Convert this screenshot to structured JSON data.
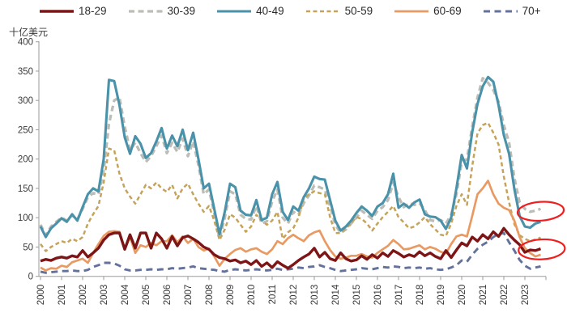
{
  "unit_label": "十亿美元",
  "axis_color": "#9b9b9b",
  "text_color": "#3a3a3a",
  "annotation_color": "#f01e1e",
  "legend": {
    "position": "top"
  },
  "chart_data": {
    "type": "line",
    "frequency": "quarterly",
    "title": "",
    "xlabel": "",
    "ylabel": "十亿美元",
    "categories": [
      "2000",
      "2001",
      "2002",
      "2003",
      "2004",
      "2005",
      "2006",
      "2007",
      "2008",
      "2009",
      "2010",
      "2011",
      "2012",
      "2013",
      "2014",
      "2015",
      "2016",
      "2017",
      "2018",
      "2019",
      "2020",
      "2021",
      "2022",
      "2023"
    ],
    "ylim": [
      0,
      400
    ],
    "y_ticks": [
      0,
      50,
      100,
      150,
      200,
      250,
      300,
      350,
      400
    ],
    "grid": false,
    "legend_position": "top",
    "series": [
      {
        "name": "18-29",
        "color": "#7d1517",
        "dash": "solid",
        "width": 3.4,
        "values": [
          26,
          29,
          27,
          31,
          33,
          31,
          35,
          33,
          44,
          33,
          40,
          48,
          62,
          71,
          74,
          74,
          46,
          71,
          48,
          74,
          74,
          48,
          74,
          64,
          48,
          68,
          52,
          66,
          69,
          64,
          58,
          50,
          46,
          37,
          32,
          30,
          26,
          28,
          23,
          26,
          20,
          27,
          17,
          23,
          15,
          25,
          19,
          14,
          20,
          27,
          33,
          38,
          48,
          33,
          41,
          30,
          27,
          40,
          30,
          26,
          28,
          35,
          29,
          37,
          31,
          40,
          34,
          44,
          39,
          33,
          37,
          34,
          42,
          35,
          40,
          34,
          30,
          44,
          32,
          45,
          57,
          52,
          67,
          60,
          71,
          64,
          76,
          68,
          82,
          71,
          62,
          54,
          41,
          45,
          44,
          47
        ]
      },
      {
        "name": "30-39",
        "color": "#bcbdb6",
        "dash": "7 4.5",
        "width": 3.3,
        "values": [
          88,
          70,
          85,
          93,
          100,
          95,
          104,
          97,
          115,
          135,
          142,
          140,
          180,
          260,
          300,
          305,
          255,
          215,
          228,
          210,
          195,
          205,
          222,
          240,
          210,
          228,
          212,
          235,
          205,
          230,
          190,
          140,
          148,
          108,
          64,
          100,
          145,
          140,
          105,
          98,
          97,
          120,
          90,
          94,
          128,
          148,
          100,
          90,
          110,
          105,
          125,
          138,
          155,
          152,
          148,
          120,
          88,
          74,
          80,
          90,
          100,
          112,
          105,
          98,
          112,
          118,
          130,
          160,
          135,
          118,
          125,
          122,
          125,
          113,
          96,
          94,
          96,
          90,
          105,
          140,
          195,
          200,
          255,
          305,
          338,
          330,
          318,
          298,
          258,
          228,
          168,
          126,
          115,
          110,
          112,
          115
        ]
      },
      {
        "name": "40-49",
        "color": "#4a92a9",
        "dash": "solid",
        "width": 3.1,
        "values": [
          85,
          67,
          82,
          90,
          99,
          93,
          106,
          95,
          118,
          140,
          150,
          145,
          200,
          335,
          333,
          292,
          237,
          209,
          239,
          226,
          202,
          210,
          230,
          253,
          218,
          240,
          222,
          250,
          215,
          245,
          200,
          150,
          158,
          115,
          72,
          110,
          158,
          152,
          112,
          105,
          104,
          130,
          96,
          100,
          140,
          161,
          110,
          96,
          119,
          112,
          135,
          150,
          170,
          166,
          165,
          130,
          95,
          78,
          85,
          95,
          108,
          119,
          112,
          103,
          119,
          125,
          140,
          175,
          117,
          124,
          117,
          126,
          131,
          106,
          102,
          101,
          95,
          81,
          100,
          150,
          207,
          184,
          246,
          294,
          324,
          340,
          332,
          292,
          241,
          209,
          149,
          103,
          85,
          83,
          90,
          93
        ]
      },
      {
        "name": "50-59",
        "color": "#c5a35a",
        "dash": "5 3.5",
        "width": 2.5,
        "values": [
          55,
          43,
          50,
          55,
          60,
          57,
          64,
          60,
          67,
          90,
          106,
          120,
          160,
          218,
          215,
          175,
          150,
          136,
          124,
          140,
          156,
          150,
          160,
          150,
          144,
          156,
          133,
          150,
          158,
          140,
          124,
          110,
          120,
          95,
          62,
          80,
          106,
          100,
          88,
          76,
          85,
          105,
          95,
          88,
          95,
          110,
          64,
          75,
          82,
          100,
          133,
          140,
          145,
          142,
          140,
          101,
          74,
          74,
          82,
          90,
          101,
          98,
          90,
          78,
          90,
          101,
          110,
          120,
          101,
          92,
          82,
          85,
          92,
          101,
          89,
          80,
          71,
          69,
          90,
          120,
          140,
          122,
          188,
          244,
          258,
          262,
          245,
          225,
          170,
          126,
          89,
          70,
          64,
          60,
          63,
          66
        ]
      },
      {
        "name": "60-69",
        "color": "#e99a63",
        "dash": "solid",
        "width": 2.7,
        "values": [
          15,
          10,
          14,
          13,
          18,
          16,
          24,
          27,
          30,
          23,
          40,
          55,
          69,
          76,
          77,
          76,
          46,
          67,
          40,
          53,
          50,
          57,
          53,
          60,
          60,
          70,
          58,
          68,
          57,
          64,
          50,
          44,
          47,
          34,
          18,
          30,
          38,
          45,
          48,
          42,
          46,
          48,
          42,
          38,
          46,
          60,
          55,
          65,
          71,
          65,
          60,
          70,
          75,
          78,
          60,
          45,
          34,
          30,
          32,
          35,
          35,
          38,
          34,
          32,
          40,
          46,
          52,
          62,
          55,
          46,
          47,
          50,
          53,
          46,
          50,
          47,
          42,
          39,
          55,
          68,
          71,
          68,
          103,
          140,
          150,
          163,
          140,
          124,
          117,
          113,
          95,
          67,
          48,
          40,
          34,
          37
        ]
      },
      {
        "name": "70+",
        "color": "#64719b",
        "dash": "8 5.5",
        "width": 2.9,
        "values": [
          8,
          6,
          7,
          8,
          9,
          9,
          10,
          9,
          9,
          11,
          16,
          19,
          23,
          23,
          22,
          18,
          12,
          10,
          10,
          11,
          11,
          12,
          11,
          12,
          12,
          14,
          13,
          14,
          15,
          17,
          14,
          13,
          12,
          11,
          9,
          8,
          11,
          12,
          11,
          10,
          11,
          12,
          11,
          10,
          11,
          13,
          11,
          12,
          13,
          15,
          14,
          16,
          17,
          19,
          16,
          14,
          11,
          9,
          10,
          11,
          12,
          14,
          13,
          12,
          14,
          16,
          15,
          17,
          16,
          14,
          15,
          14,
          15,
          13,
          14,
          12,
          11,
          12,
          15,
          19,
          27,
          25,
          37,
          47,
          54,
          59,
          67,
          72,
          74,
          58,
          44,
          28,
          18,
          13,
          15,
          17
        ]
      }
    ],
    "annotations": [
      {
        "type": "ellipse",
        "label": "circled-endpoints-upper",
        "center_year": 2023.75,
        "center_value": 111,
        "rx_years": 1.1,
        "ry_value": 16,
        "rotation_deg": -4
      },
      {
        "type": "ellipse",
        "label": "circled-endpoints-lower",
        "center_year": 2023.8,
        "center_value": 46,
        "rx_years": 1.1,
        "ry_value": 17,
        "rotation_deg": -3
      }
    ]
  }
}
